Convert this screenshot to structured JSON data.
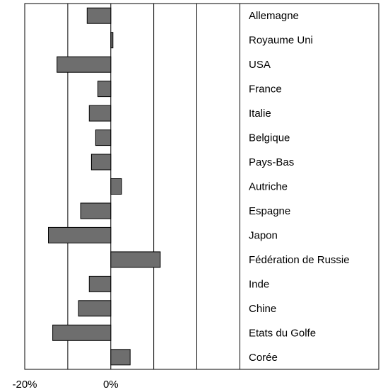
{
  "chart_data": {
    "type": "bar",
    "orientation": "horizontal",
    "categories": [
      "Allemagne",
      "Royaume Uni",
      "USA",
      "France",
      "Italie",
      "Belgique",
      "Pays-Bas",
      "Autriche",
      "Espagne",
      "Japon",
      "Fédération de Russie",
      "Inde",
      "Chine",
      "Etats du Golfe",
      "Corée"
    ],
    "values": [
      -5.5,
      0.5,
      -12.5,
      -3.0,
      -5.0,
      -3.5,
      -4.5,
      2.5,
      -7.0,
      -14.5,
      11.5,
      -5.0,
      -7.5,
      -13.5,
      4.5
    ],
    "xlim": [
      -20,
      37
    ],
    "x_ticks": [
      -20,
      -10,
      0,
      10,
      20,
      30
    ],
    "x_tick_labels": [
      "-20%",
      "",
      "0%",
      "",
      "",
      ""
    ],
    "grid": true,
    "colors": {
      "bar": "#6e6e6e",
      "bar_stroke": "#000000",
      "grid": "#000000",
      "frame": "#000000"
    }
  }
}
